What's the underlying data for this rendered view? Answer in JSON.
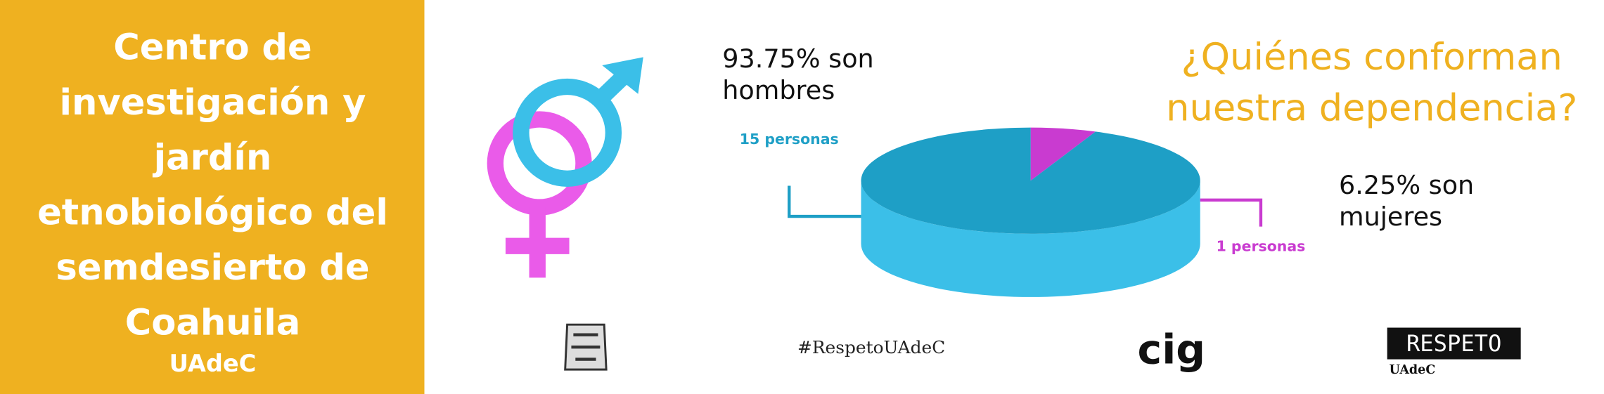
{
  "sidebar": {
    "title_lines": [
      "Centro de",
      "investigación y",
      "jardín",
      "etnobiológico del",
      "semdesierto de",
      "Coahuila"
    ],
    "subtitle": "UAdeC"
  },
  "chart_data": {
    "type": "pie",
    "title": "¿Quiénes conforman nuestra dependencia?",
    "values": [
      15,
      1
    ],
    "value_labels": [
      "15 personas",
      "1 personas"
    ],
    "colors": [
      "#1e9fc6",
      "#c93bd0"
    ],
    "annotations": [
      "93.75% son hombres",
      "6.25% son mujeres"
    ]
  },
  "footer": {
    "hashtag": "#RespetoUAdeC",
    "logos": [
      "cig",
      "RESPETO",
      "UAdeC"
    ]
  }
}
